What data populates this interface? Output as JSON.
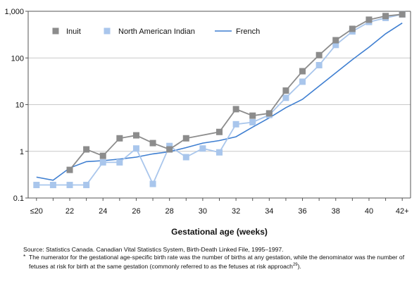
{
  "chart_data": {
    "type": "line",
    "title": "",
    "xlabel": "Gestational age (weeks)",
    "ylabel": "",
    "yscale": "log",
    "ylim": [
      0.1,
      1000
    ],
    "grid": "horizontal",
    "legend_position": "top-left",
    "x": [
      "≤20",
      "21",
      "22",
      "23",
      "24",
      "25",
      "26",
      "27",
      "28",
      "29",
      "30",
      "31",
      "32",
      "33",
      "34",
      "35",
      "36",
      "37",
      "38",
      "39",
      "40",
      "41",
      "42+"
    ],
    "x_tick_labels": [
      "≤20",
      "22",
      "24",
      "26",
      "28",
      "30",
      "32",
      "34",
      "36",
      "38",
      "40",
      "42+"
    ],
    "y_tick_labels": [
      "0.1",
      "1",
      "10",
      "100",
      "1,000"
    ],
    "y_ticks": [
      0.1,
      1,
      10,
      100,
      1000
    ],
    "series": [
      {
        "name": "Inuit",
        "color": "#8c8c8c",
        "marker": "square",
        "values": [
          null,
          null,
          0.4,
          1.1,
          0.8,
          1.9,
          2.2,
          1.5,
          1.1,
          1.9,
          null,
          2.6,
          8.0,
          5.8,
          6.5,
          20,
          52,
          115,
          240,
          420,
          660,
          790,
          860
        ]
      },
      {
        "name": "North American Indian",
        "color": "#a9c6ec",
        "marker": "square",
        "values": [
          0.19,
          0.19,
          0.19,
          0.19,
          0.58,
          0.58,
          1.15,
          0.2,
          1.3,
          0.75,
          1.15,
          0.95,
          3.8,
          4.2,
          6.0,
          14,
          31,
          70,
          190,
          370,
          590,
          720,
          860
        ]
      },
      {
        "name": "French",
        "color": "#3f7fd1",
        "marker": "none",
        "values": [
          0.28,
          0.24,
          0.44,
          0.6,
          0.63,
          0.68,
          0.75,
          0.88,
          0.98,
          1.2,
          1.5,
          1.7,
          2.05,
          3.3,
          5.2,
          8.6,
          13,
          25,
          48,
          92,
          170,
          330,
          560
        ]
      }
    ]
  },
  "notes": {
    "source": "Source: Statistics Canada. Canadian Vital Statistics System, Birth-Death Linked File, 1995–1997.",
    "footnote_marker": "*",
    "footnote": "The numerator for the gestational age-specific birth rate was the number of births at any gestation, while the denominator was the number of fetuses at risk for birth at the same gestation (commonly referred to as the fetuses at risk approach",
    "footnote_ref": "29",
    "footnote_end": ")."
  }
}
